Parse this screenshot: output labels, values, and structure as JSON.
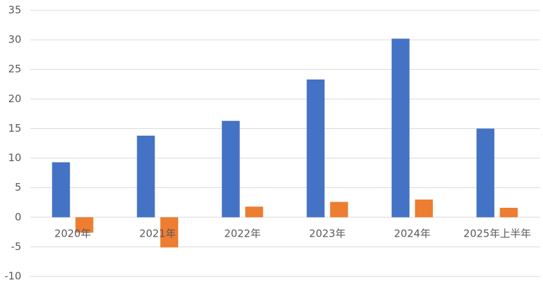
{
  "chart_data": {
    "type": "bar",
    "categories": [
      "2020年",
      "2021年",
      "2022年",
      "2023年",
      "2024年",
      "2025年上半年"
    ],
    "series": [
      {
        "color": "#4472c4",
        "values": [
          9.3,
          13.8,
          16.3,
          23.3,
          30.2,
          15.0
        ]
      },
      {
        "color": "#ed7d31",
        "values": [
          -2.6,
          -5.1,
          1.8,
          2.6,
          3.0,
          1.6
        ]
      }
    ],
    "ylim": [
      -10,
      35
    ],
    "yticks": [
      -10,
      -5,
      0,
      5,
      10,
      15,
      20,
      25,
      30,
      35
    ],
    "grid": true
  }
}
